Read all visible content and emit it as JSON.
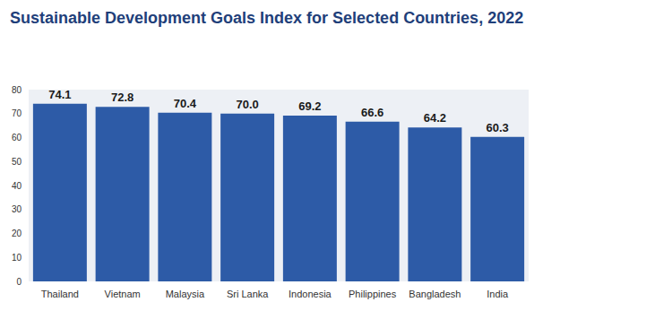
{
  "chart_data": {
    "type": "bar",
    "title": "Sustainable Development Goals Index for Selected Countries, 2022",
    "categories": [
      "Thailand",
      "Vietnam",
      "Malaysia",
      "Sri Lanka",
      "Indonesia",
      "Philippines",
      "Bangladesh",
      "India"
    ],
    "values": [
      74.1,
      72.8,
      70.4,
      70.0,
      69.2,
      66.6,
      64.2,
      60.3
    ],
    "value_labels": [
      "74.1",
      "72.8",
      "70.4",
      "70.0",
      "69.2",
      "66.6",
      "64.2",
      "60.3"
    ],
    "color": "#2d5ba7",
    "ylim": [
      0,
      80
    ],
    "yticks": [
      0,
      10,
      20,
      30,
      40,
      50,
      60,
      70,
      80
    ],
    "grid": false,
    "data_labels": true
  }
}
